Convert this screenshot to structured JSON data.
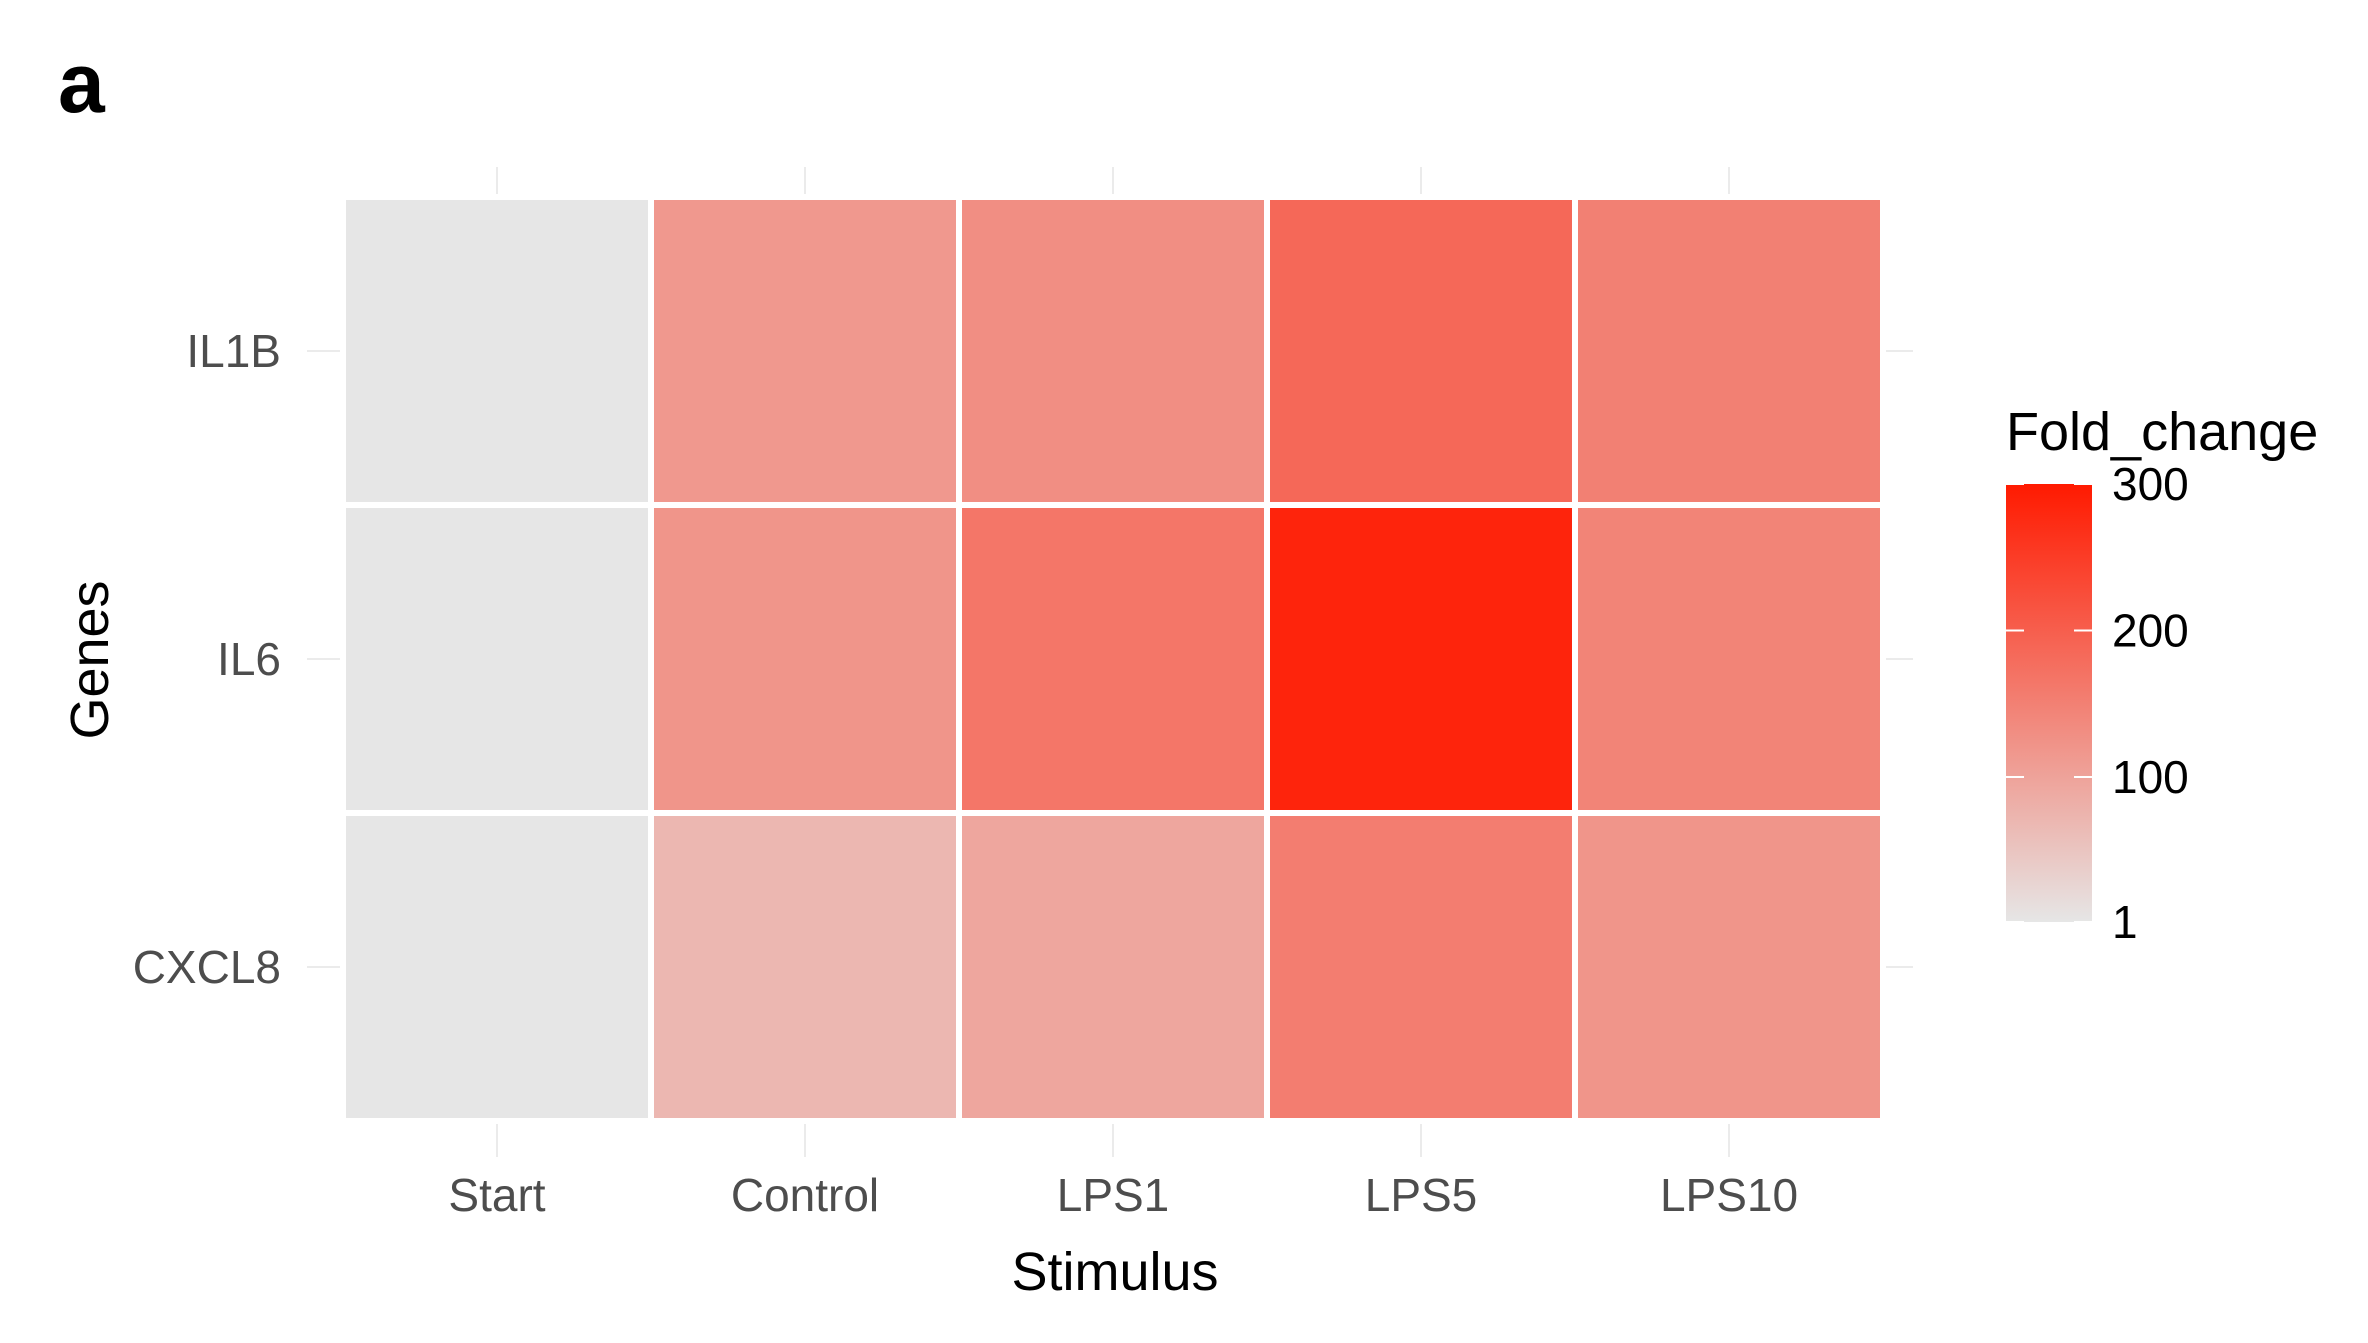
{
  "panel_label": "a",
  "chart_data": {
    "type": "heatmap",
    "title": "",
    "xlabel": "Stimulus",
    "ylabel": "Genes",
    "x_categories": [
      "Start",
      "Control",
      "LPS1",
      "LPS5",
      "LPS10"
    ],
    "y_categories": [
      "IL1B",
      "IL6",
      "CXCL8"
    ],
    "values": [
      [
        1,
        115,
        130,
        185,
        150
      ],
      [
        1,
        120,
        165,
        285,
        145
      ],
      [
        1,
        70,
        95,
        155,
        120
      ]
    ],
    "color_scale": {
      "title": "Fold_change",
      "min": 1,
      "max": 300,
      "low_color": "#e6e6e6",
      "high_color": "#ff1a00",
      "breaks": [
        1,
        100,
        200,
        300
      ],
      "break_labels": [
        "1",
        "100",
        "200",
        "300"
      ]
    },
    "grid": true,
    "background": "#ffffff",
    "legend_position": "right"
  }
}
